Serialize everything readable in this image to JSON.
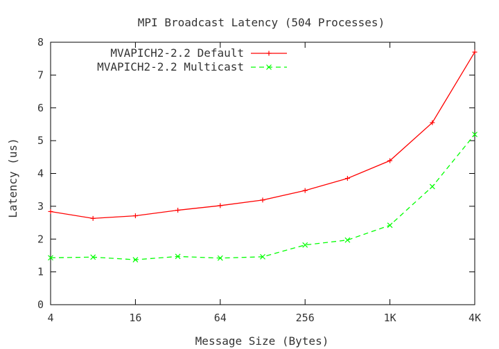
{
  "chart_data": {
    "type": "line",
    "title": "MPI Broadcast Latency (504 Processes)",
    "xlabel": "Message Size (Bytes)",
    "ylabel": "Latency (us)",
    "x_scale": "log2",
    "x": [
      4,
      8,
      16,
      32,
      64,
      128,
      256,
      512,
      1024,
      2048,
      4096
    ],
    "xlim": [
      4,
      4096
    ],
    "ylim": [
      0,
      8
    ],
    "xticks": [
      {
        "value": 4,
        "label": "4"
      },
      {
        "value": 16,
        "label": "16"
      },
      {
        "value": 64,
        "label": "64"
      },
      {
        "value": 256,
        "label": "256"
      },
      {
        "value": 1024,
        "label": "1K"
      },
      {
        "value": 4096,
        "label": "4K"
      }
    ],
    "yticks": [
      {
        "value": 0,
        "label": "0"
      },
      {
        "value": 1,
        "label": "1"
      },
      {
        "value": 2,
        "label": "2"
      },
      {
        "value": 3,
        "label": "3"
      },
      {
        "value": 4,
        "label": "4"
      },
      {
        "value": 5,
        "label": "5"
      },
      {
        "value": 6,
        "label": "6"
      },
      {
        "value": 7,
        "label": "7"
      },
      {
        "value": 8,
        "label": "8"
      }
    ],
    "legend_position": "top-left",
    "grid": false,
    "series": [
      {
        "name": "MVAPICH2-2.2 Default",
        "color": "#ff0000",
        "dash": "solid",
        "marker": "plus",
        "values": [
          2.84,
          2.63,
          2.71,
          2.88,
          3.02,
          3.19,
          3.48,
          3.85,
          4.39,
          5.55,
          7.7
        ]
      },
      {
        "name": "MVAPICH2-2.2 Multicast",
        "color": "#00ff00",
        "dash": "dashed",
        "marker": "cross",
        "values": [
          1.43,
          1.45,
          1.37,
          1.47,
          1.42,
          1.46,
          1.82,
          1.97,
          2.42,
          3.6,
          5.19
        ]
      }
    ]
  }
}
